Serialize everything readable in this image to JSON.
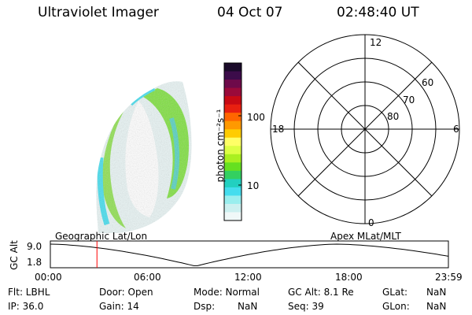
{
  "header": {
    "instrument": "Ultraviolet Imager",
    "date": "04 Oct 07",
    "time": "02:48:40 UT"
  },
  "colorbar": {
    "unit_label": "photon cm⁻²s⁻¹",
    "ticks": [
      "100",
      "10"
    ],
    "colors": [
      "#1a0a2a",
      "#3c0c4a",
      "#6e0a4a",
      "#9a0a3a",
      "#c80a14",
      "#e82010",
      "#ff6600",
      "#ff9900",
      "#ffcc00",
      "#ffff66",
      "#ddff44",
      "#aaf020",
      "#66e020",
      "#33d060",
      "#22d0c0",
      "#44ddee",
      "#99eeee",
      "#ccf0f0",
      "#f0f8f8"
    ]
  },
  "polar_grid": {
    "mlt_labels": {
      "top": "12",
      "bottom": "0",
      "left": "18",
      "right": "6"
    },
    "lat_labels": [
      "60",
      "70",
      "80"
    ]
  },
  "orbit_plot": {
    "y_axis_title": "GC Alt",
    "y_ticks": [
      "9.0",
      "1.8"
    ],
    "x_ticks": [
      "00:00",
      "06:00",
      "12:00",
      "18:00",
      "23:59"
    ],
    "left_caption": "Geographic Lat/Lon",
    "right_caption": "Apex  MLat/MLT",
    "current_time_hours": 2.81,
    "line_color": "#000000",
    "marker_color": "#ff0000"
  },
  "status": {
    "row1": {
      "filter": "Flt: LBHL",
      "door": "Door: Open",
      "mode": "Mode: Normal",
      "gc_alt": "GC Alt: 8.1 Re",
      "glat_label": "GLat:",
      "glat_value": "NaN"
    },
    "row2": {
      "ip": "IP: 36.0",
      "gain": "Gain: 14",
      "dsp_label": "Dsp:",
      "dsp_value": "NaN",
      "seq": "Seq: 39",
      "glon_label": "GLon:",
      "glon_value": "NaN"
    }
  }
}
